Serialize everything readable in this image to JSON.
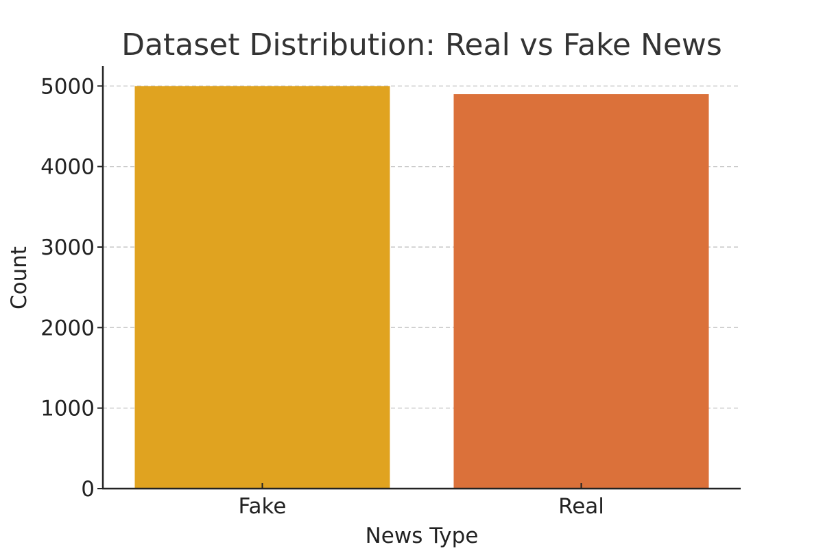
{
  "chart_data": {
    "type": "bar",
    "title": "Dataset Distribution: Real vs Fake News",
    "xlabel": "News Type",
    "ylabel": "Count",
    "categories": [
      "Fake",
      "Real"
    ],
    "values": [
      5000,
      4900
    ],
    "colors": [
      "#E0A320",
      "#DB713A"
    ],
    "ylim": [
      0,
      5250
    ],
    "yticks": [
      0,
      1000,
      2000,
      3000,
      4000,
      5000
    ],
    "grid": "y-dashed",
    "legend": "none"
  }
}
